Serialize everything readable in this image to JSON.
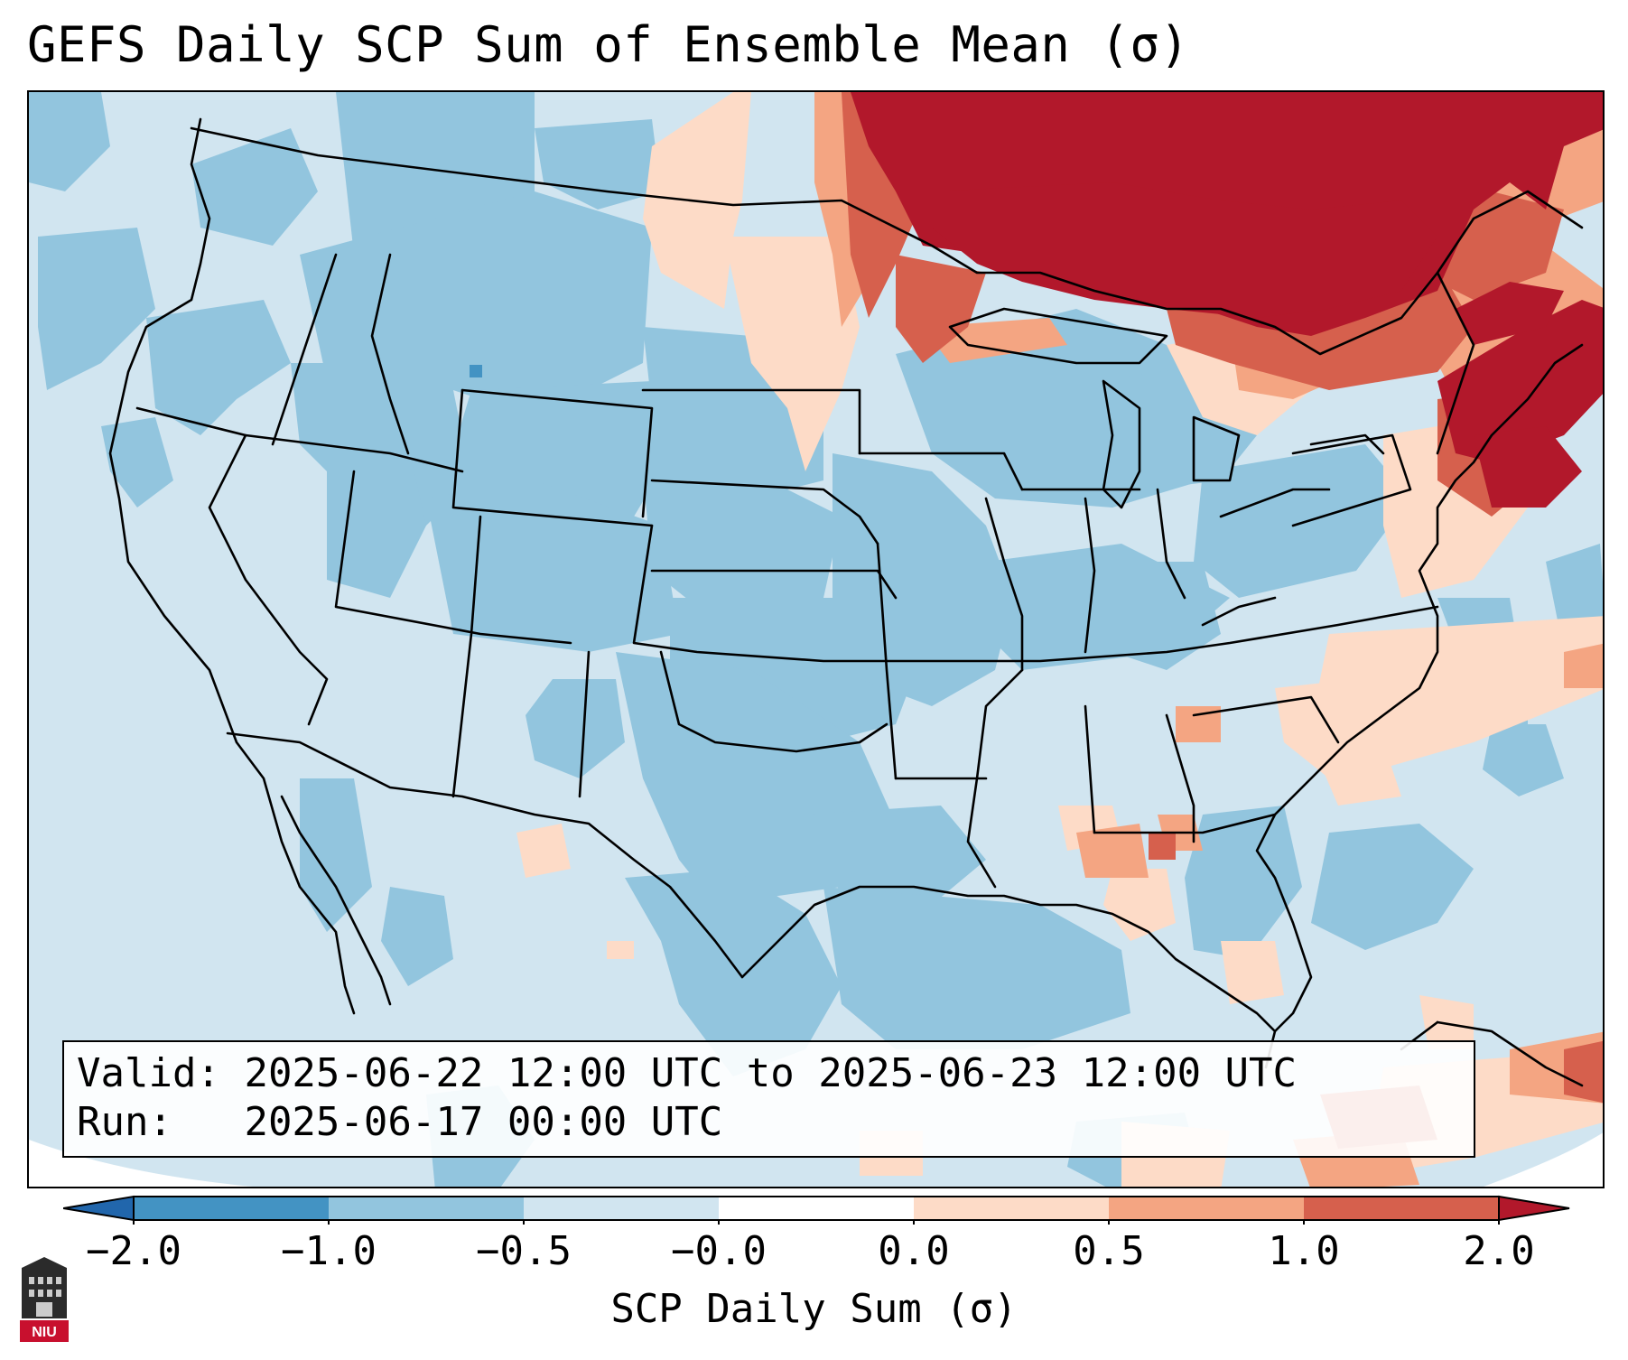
{
  "title": "GEFS Daily SCP Sum of Ensemble Mean (σ)",
  "valid_label": "Valid:",
  "valid_value": "2025-06-22 12:00 UTC to 2025-06-23 12:00 UTC",
  "run_label": "Run:",
  "run_value": "2025-06-17 00:00 UTC",
  "colorbar": {
    "label": "SCP Daily Sum (σ)",
    "ticks": [
      "−2.0",
      "−1.0",
      "−0.5",
      "−0.0",
      "0.0",
      "0.5",
      "1.0",
      "2.0"
    ],
    "colors": {
      "below_min": "#2166ac",
      "lt_-1": "#4393c3",
      "-1_-0.5": "#92c5de",
      "-0.5_0": "#d1e5f0",
      "0_0.5": "#fddbc7",
      "0.5_1": "#f4a582",
      "1_2": "#d6604d",
      "above_max": "#b2182b"
    }
  },
  "logo": {
    "text": "NIU",
    "icon": "niu-logo-icon"
  }
}
